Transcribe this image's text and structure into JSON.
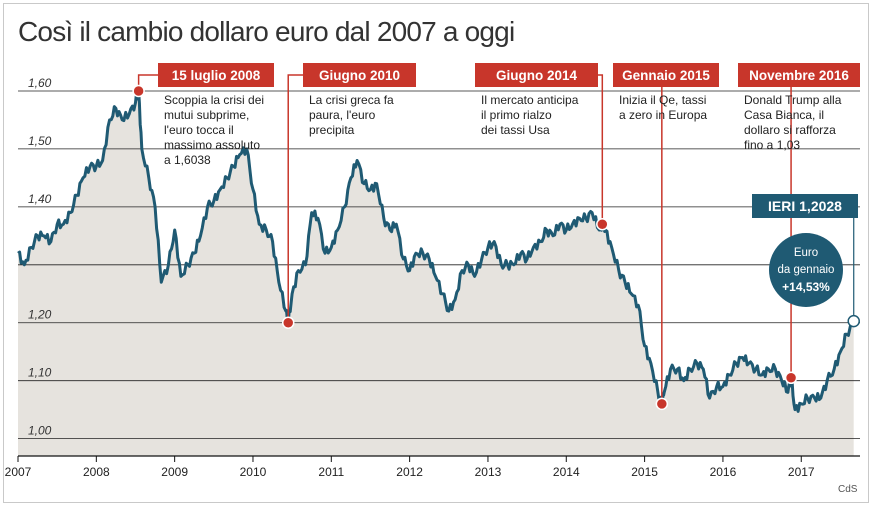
{
  "title": "Così il cambio dollaro euro dal 2007 a oggi",
  "credit": "CdS",
  "colors": {
    "line": "#1f5a73",
    "area": "#e6e3de",
    "accent": "#c8362b",
    "badge": "#1f5a73",
    "grid": "#222222"
  },
  "chart_data": {
    "type": "area",
    "x_unit": "year",
    "xlim": [
      2007.0,
      2017.75
    ],
    "ylim": [
      0.97,
      1.65
    ],
    "yticks": [
      1.0,
      1.1,
      1.2,
      1.3,
      1.4,
      1.5,
      1.6
    ],
    "ytick_labels": [
      "1,00",
      "1,10",
      "1,20",
      "",
      "1,40",
      "1,50",
      "1,60"
    ],
    "xticks": [
      "2007",
      "2008",
      "2009",
      "2010",
      "2011",
      "2012",
      "2013",
      "2014",
      "2015",
      "2016",
      "2017"
    ],
    "series": [
      {
        "values": [
          [
            2007.0,
            1.32
          ],
          [
            2007.08,
            1.3
          ],
          [
            2007.17,
            1.33
          ],
          [
            2007.25,
            1.35
          ],
          [
            2007.33,
            1.35
          ],
          [
            2007.42,
            1.34
          ],
          [
            2007.5,
            1.37
          ],
          [
            2007.58,
            1.37
          ],
          [
            2007.67,
            1.39
          ],
          [
            2007.75,
            1.42
          ],
          [
            2007.83,
            1.45
          ],
          [
            2007.92,
            1.47
          ],
          [
            2008.0,
            1.47
          ],
          [
            2008.08,
            1.48
          ],
          [
            2008.17,
            1.55
          ],
          [
            2008.25,
            1.57
          ],
          [
            2008.33,
            1.55
          ],
          [
            2008.42,
            1.56
          ],
          [
            2008.5,
            1.58
          ],
          [
            2008.54,
            1.6
          ],
          [
            2008.58,
            1.5
          ],
          [
            2008.67,
            1.45
          ],
          [
            2008.75,
            1.4
          ],
          [
            2008.83,
            1.27
          ],
          [
            2008.92,
            1.3
          ],
          [
            2009.0,
            1.36
          ],
          [
            2009.08,
            1.28
          ],
          [
            2009.17,
            1.3
          ],
          [
            2009.25,
            1.32
          ],
          [
            2009.33,
            1.35
          ],
          [
            2009.42,
            1.4
          ],
          [
            2009.5,
            1.41
          ],
          [
            2009.58,
            1.43
          ],
          [
            2009.67,
            1.45
          ],
          [
            2009.75,
            1.47
          ],
          [
            2009.83,
            1.49
          ],
          [
            2009.92,
            1.5
          ],
          [
            2010.0,
            1.43
          ],
          [
            2010.08,
            1.37
          ],
          [
            2010.17,
            1.36
          ],
          [
            2010.25,
            1.34
          ],
          [
            2010.33,
            1.27
          ],
          [
            2010.42,
            1.22
          ],
          [
            2010.45,
            1.2
          ],
          [
            2010.5,
            1.25
          ],
          [
            2010.58,
            1.29
          ],
          [
            2010.67,
            1.3
          ],
          [
            2010.75,
            1.39
          ],
          [
            2010.83,
            1.38
          ],
          [
            2010.92,
            1.32
          ],
          [
            2011.0,
            1.33
          ],
          [
            2011.08,
            1.36
          ],
          [
            2011.17,
            1.4
          ],
          [
            2011.25,
            1.45
          ],
          [
            2011.33,
            1.48
          ],
          [
            2011.42,
            1.44
          ],
          [
            2011.5,
            1.43
          ],
          [
            2011.58,
            1.44
          ],
          [
            2011.67,
            1.38
          ],
          [
            2011.75,
            1.36
          ],
          [
            2011.83,
            1.37
          ],
          [
            2011.92,
            1.31
          ],
          [
            2012.0,
            1.29
          ],
          [
            2012.08,
            1.32
          ],
          [
            2012.17,
            1.32
          ],
          [
            2012.25,
            1.31
          ],
          [
            2012.33,
            1.28
          ],
          [
            2012.42,
            1.25
          ],
          [
            2012.5,
            1.22
          ],
          [
            2012.58,
            1.24
          ],
          [
            2012.67,
            1.29
          ],
          [
            2012.75,
            1.3
          ],
          [
            2012.83,
            1.28
          ],
          [
            2012.92,
            1.31
          ],
          [
            2013.0,
            1.33
          ],
          [
            2013.08,
            1.34
          ],
          [
            2013.17,
            1.3
          ],
          [
            2013.25,
            1.3
          ],
          [
            2013.33,
            1.3
          ],
          [
            2013.42,
            1.32
          ],
          [
            2013.5,
            1.31
          ],
          [
            2013.58,
            1.33
          ],
          [
            2013.67,
            1.34
          ],
          [
            2013.75,
            1.36
          ],
          [
            2013.83,
            1.35
          ],
          [
            2013.92,
            1.37
          ],
          [
            2014.0,
            1.36
          ],
          [
            2014.08,
            1.37
          ],
          [
            2014.17,
            1.38
          ],
          [
            2014.25,
            1.38
          ],
          [
            2014.33,
            1.39
          ],
          [
            2014.42,
            1.36
          ],
          [
            2014.46,
            1.37
          ],
          [
            2014.5,
            1.36
          ],
          [
            2014.58,
            1.33
          ],
          [
            2014.67,
            1.29
          ],
          [
            2014.75,
            1.27
          ],
          [
            2014.83,
            1.25
          ],
          [
            2014.92,
            1.23
          ],
          [
            2015.0,
            1.16
          ],
          [
            2015.08,
            1.13
          ],
          [
            2015.17,
            1.08
          ],
          [
            2015.22,
            1.06
          ],
          [
            2015.25,
            1.08
          ],
          [
            2015.33,
            1.12
          ],
          [
            2015.42,
            1.12
          ],
          [
            2015.5,
            1.1
          ],
          [
            2015.58,
            1.12
          ],
          [
            2015.67,
            1.13
          ],
          [
            2015.75,
            1.12
          ],
          [
            2015.83,
            1.07
          ],
          [
            2015.92,
            1.09
          ],
          [
            2016.0,
            1.09
          ],
          [
            2016.08,
            1.11
          ],
          [
            2016.17,
            1.13
          ],
          [
            2016.25,
            1.14
          ],
          [
            2016.33,
            1.13
          ],
          [
            2016.42,
            1.12
          ],
          [
            2016.5,
            1.11
          ],
          [
            2016.58,
            1.12
          ],
          [
            2016.67,
            1.12
          ],
          [
            2016.75,
            1.1
          ],
          [
            2016.83,
            1.08
          ],
          [
            2016.87,
            1.105
          ],
          [
            2016.92,
            1.05
          ],
          [
            2017.0,
            1.06
          ],
          [
            2017.08,
            1.07
          ],
          [
            2017.17,
            1.07
          ],
          [
            2017.25,
            1.07
          ],
          [
            2017.33,
            1.1
          ],
          [
            2017.42,
            1.12
          ],
          [
            2017.5,
            1.15
          ],
          [
            2017.58,
            1.18
          ],
          [
            2017.67,
            1.2028
          ]
        ]
      }
    ],
    "events": [
      {
        "label": "15 luglio 2008",
        "x": 2008.54,
        "y": 1.6,
        "text": [
          "Scoppia la crisi dei",
          "mutui subprime,",
          "l'euro tocca il",
          "massimo assoluto",
          "a 1,6038"
        ]
      },
      {
        "label": "Giugno 2010",
        "x": 2010.45,
        "y": 1.2,
        "text": [
          "La crisi greca fa",
          "paura, l'euro",
          "precipita"
        ]
      },
      {
        "label": "Giugno 2014",
        "x": 2014.46,
        "y": 1.37,
        "text": [
          "Il mercato anticipa",
          "il primo rialzo",
          "dei tassi Usa"
        ]
      },
      {
        "label": "Gennaio 2015",
        "x": 2015.22,
        "y": 1.06,
        "text": [
          "Inizia il Qe, tassi",
          "a zero in Europa"
        ]
      },
      {
        "label": "Novembre 2016",
        "x": 2016.87,
        "y": 1.105,
        "text": [
          "Donald Trump alla",
          "Casa Bianca, il",
          "dollaro si rafforza",
          "fino a 1,03"
        ]
      }
    ],
    "current": {
      "label": "IERI 1,2028",
      "x": 2017.67,
      "y": 1.2028
    },
    "badge": {
      "line1": "Euro",
      "line2": "da gennaio",
      "line3": "+14,53%"
    }
  }
}
